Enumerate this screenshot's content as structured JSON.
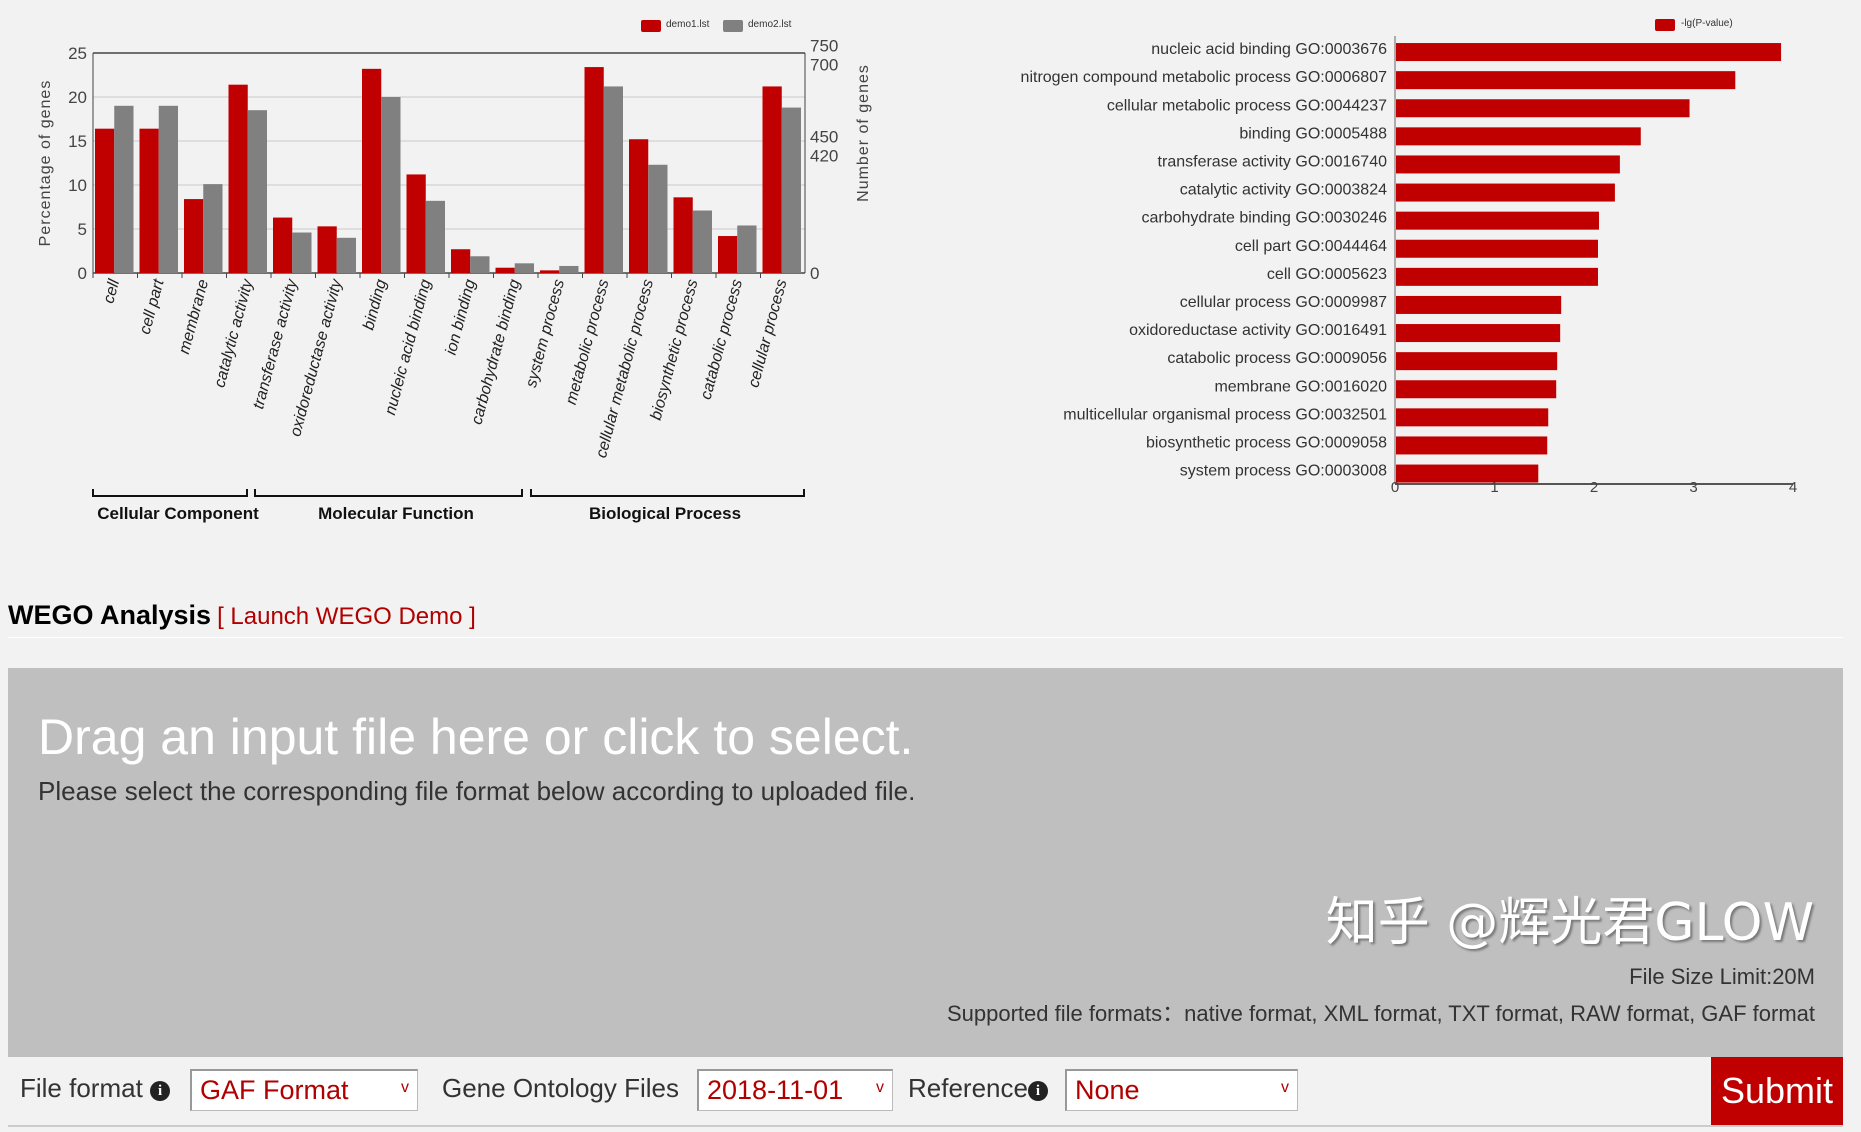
{
  "chart_data": [
    {
      "type": "bar",
      "categories": [
        "cell",
        "cell part",
        "membrane",
        "catalytic activity",
        "transferase activity",
        "oxidoreductase activity",
        "binding",
        "nucleic acid binding",
        "ion binding",
        "carbohydrate binding",
        "system process",
        "metabolic process",
        "cellular metabolic process",
        "biosynthetic process",
        "catabolic process",
        "cellular process"
      ],
      "series": [
        {
          "name": "demo1.lst",
          "color": "#c00000",
          "values": [
            16.4,
            16.4,
            8.4,
            21.4,
            6.3,
            5.3,
            23.2,
            11.2,
            2.7,
            0.6,
            0.3,
            23.4,
            15.2,
            8.6,
            4.2,
            21.2
          ]
        },
        {
          "name": "demo2.lst",
          "color": "#808080",
          "values": [
            19.0,
            19.0,
            10.1,
            18.5,
            4.6,
            4.0,
            20.0,
            8.2,
            1.9,
            1.1,
            0.8,
            21.2,
            12.3,
            7.1,
            5.4,
            18.8
          ]
        }
      ],
      "ylabel": "Percentage of genes",
      "y2label": "Number of genes",
      "ylim": [
        0,
        25
      ],
      "yticks": [
        0,
        5,
        10,
        15,
        20,
        25
      ],
      "y2ticks": [
        0,
        420,
        450,
        700,
        750
      ],
      "grid": true,
      "legend": "top-right",
      "groups": [
        {
          "label": "Cellular Component",
          "count": 3
        },
        {
          "label": "Molecular Function",
          "count": 6
        },
        {
          "label": "Biological Process",
          "count": 7
        }
      ]
    },
    {
      "type": "bar",
      "orientation": "horizontal",
      "categories": [
        "nucleic acid binding GO:0003676",
        "nitrogen compound metabolic process GO:0006807",
        "cellular metabolic process GO:0044237",
        "binding GO:0005488",
        "transferase activity GO:0016740",
        "catalytic activity GO:0003824",
        "carbohydrate binding GO:0030246",
        "cell part GO:0044464",
        "cell GO:0005623",
        "cellular process GO:0009987",
        "oxidoreductase activity GO:0016491",
        "catabolic process GO:0009056",
        "membrane GO:0016020",
        "multicellular organismal process GO:0032501",
        "biosynthetic process GO:0009058",
        "system process GO:0003008"
      ],
      "series": [
        {
          "name": "-lg(P-value)",
          "color": "#c00000",
          "values": [
            3.87,
            3.41,
            2.95,
            2.46,
            2.25,
            2.2,
            2.04,
            2.03,
            2.03,
            1.66,
            1.65,
            1.62,
            1.61,
            1.53,
            1.52,
            1.43
          ]
        }
      ],
      "xlim": [
        0,
        4
      ],
      "xticks": [
        0,
        1,
        2,
        3,
        4
      ],
      "legend": "top-right"
    }
  ],
  "section": {
    "title": "WEGO Analysis",
    "demo_link": "[ Launch WEGO Demo ]"
  },
  "dropzone": {
    "title": "Drag an input file here or click to select.",
    "subtitle": "Please select the corresponding file format below according to uploaded file.",
    "size_limit": "File Size Limit:20M",
    "formats": "Supported file formats：native format, XML format, TXT format, RAW format, GAF format"
  },
  "form": {
    "file_format_label": "File format",
    "file_format_value": "GAF Format",
    "go_files_label": "Gene Ontology Files",
    "go_files_value": "2018-11-01",
    "reference_label": "Reference",
    "reference_value": "None",
    "info_icon": "i",
    "chevron": "v",
    "submit": "Submit"
  },
  "watermark": "知乎 @辉光君GLOW"
}
